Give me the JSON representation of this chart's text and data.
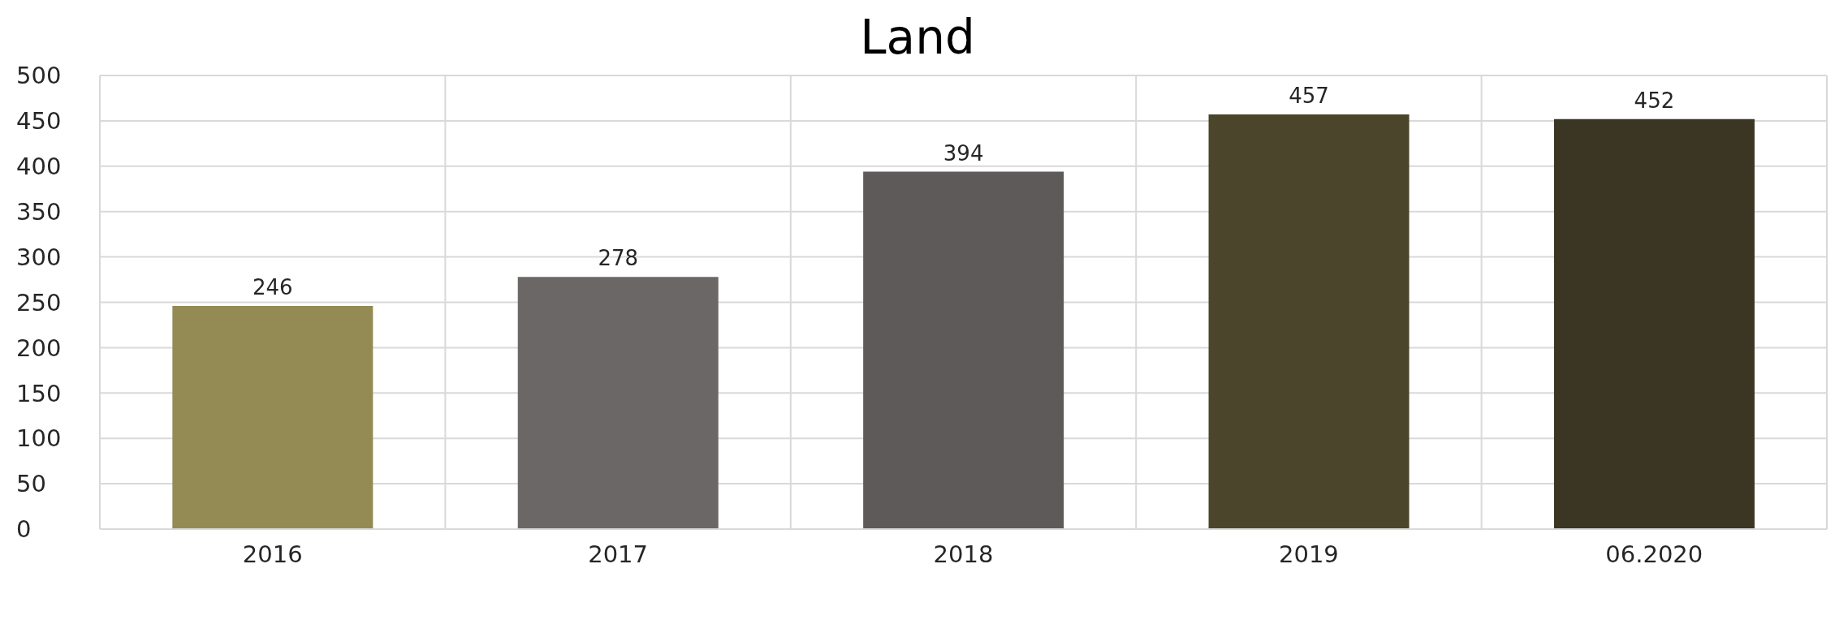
{
  "chart_data": {
    "type": "bar",
    "title": "Land",
    "categories": [
      "2016",
      "2017",
      "2018",
      "2019",
      "06.2020"
    ],
    "values": [
      246,
      278,
      394,
      457,
      452
    ],
    "colors": [
      "#948a54",
      "#6b6766",
      "#5e5a59",
      "#4a452b",
      "#3b3523"
    ],
    "ylim": [
      0,
      500
    ],
    "yticks": [
      0,
      50,
      100,
      150,
      200,
      250,
      300,
      350,
      400,
      450,
      500
    ],
    "grid": true,
    "data_labels": true
  }
}
